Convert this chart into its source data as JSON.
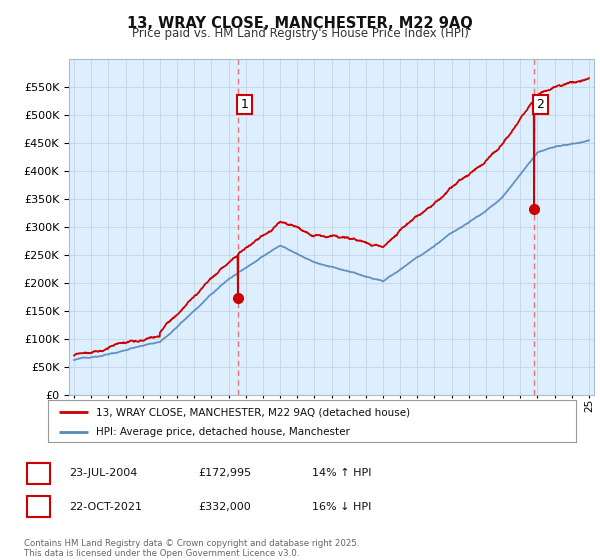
{
  "title": "13, WRAY CLOSE, MANCHESTER, M22 9AQ",
  "subtitle": "Price paid vs. HM Land Registry's House Price Index (HPI)",
  "legend_label_red": "13, WRAY CLOSE, MANCHESTER, M22 9AQ (detached house)",
  "legend_label_blue": "HPI: Average price, detached house, Manchester",
  "transaction1_date": "23-JUL-2004",
  "transaction1_price": "£172,995",
  "transaction1_hpi": "14% ↑ HPI",
  "transaction2_date": "22-OCT-2021",
  "transaction2_price": "£332,000",
  "transaction2_hpi": "16% ↓ HPI",
  "footer": "Contains HM Land Registry data © Crown copyright and database right 2025.\nThis data is licensed under the Open Government Licence v3.0.",
  "red_color": "#cc0000",
  "blue_color": "#5588bb",
  "blue_fill_color": "#ddeeff",
  "dashed_line_color": "#ee6666",
  "grid_color": "#c8d8e8",
  "background_color": "#ffffff",
  "plot_bg_color": "#ddeeff",
  "ylim_min": 0,
  "ylim_max": 600000,
  "yticks": [
    0,
    50000,
    100000,
    150000,
    200000,
    250000,
    300000,
    350000,
    400000,
    450000,
    500000,
    550000
  ],
  "year_start": 1995,
  "year_end": 2025,
  "transaction1_year": 2004.55,
  "transaction2_year": 2021.8
}
